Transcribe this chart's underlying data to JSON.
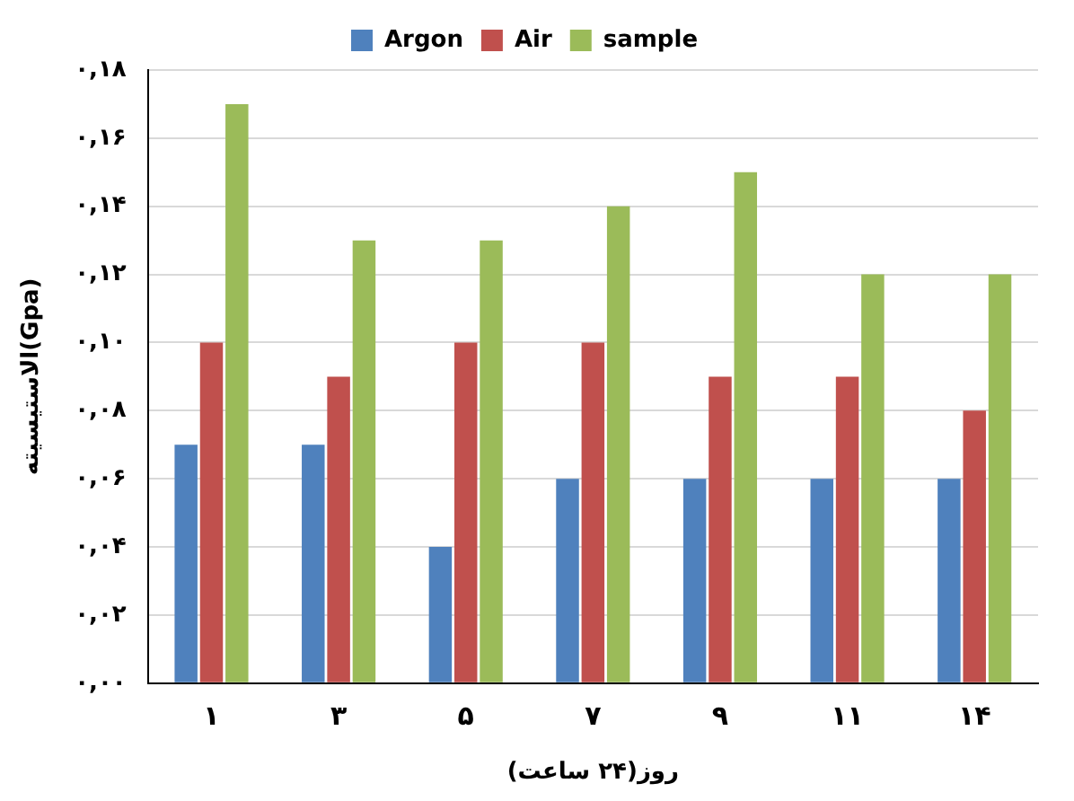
{
  "chart_data": {
    "type": "bar",
    "xlabel": "روز(۲۴ ساعت)",
    "ylabel": "الاستیسیته(Gpa)",
    "categories": [
      "۱",
      "۳",
      "۵",
      "۷",
      "۹",
      "۱۱",
      "۱۴"
    ],
    "series": [
      {
        "name": "Argon",
        "color": "#4f81bd",
        "values": [
          0.07,
          0.07,
          0.04,
          0.06,
          0.06,
          0.06,
          0.06
        ]
      },
      {
        "name": "Air",
        "color": "#c0504d",
        "values": [
          0.1,
          0.09,
          0.1,
          0.1,
          0.09,
          0.09,
          0.08
        ]
      },
      {
        "name": "sample",
        "color": "#9bbb59",
        "values": [
          0.17,
          0.13,
          0.13,
          0.14,
          0.15,
          0.12,
          0.12
        ]
      }
    ],
    "ylim": [
      0,
      0.18
    ],
    "yticks": [
      {
        "value": 0,
        "label": "۰,۰۰"
      },
      {
        "value": 0.02,
        "label": "۰,۰۲"
      },
      {
        "value": 0.04,
        "label": "۰,۰۴"
      },
      {
        "value": 0.06,
        "label": "۰,۰۶"
      },
      {
        "value": 0.08,
        "label": "۰,۰۸"
      },
      {
        "value": 0.1,
        "label": "۰,۱۰"
      },
      {
        "value": 0.12,
        "label": "۰,۱۲"
      },
      {
        "value": 0.14,
        "label": "۰,۱۴"
      },
      {
        "value": 0.16,
        "label": "۰,۱۶"
      },
      {
        "value": 0.18,
        "label": "۰,۱۸"
      }
    ],
    "grid": "y",
    "legend": "top"
  }
}
